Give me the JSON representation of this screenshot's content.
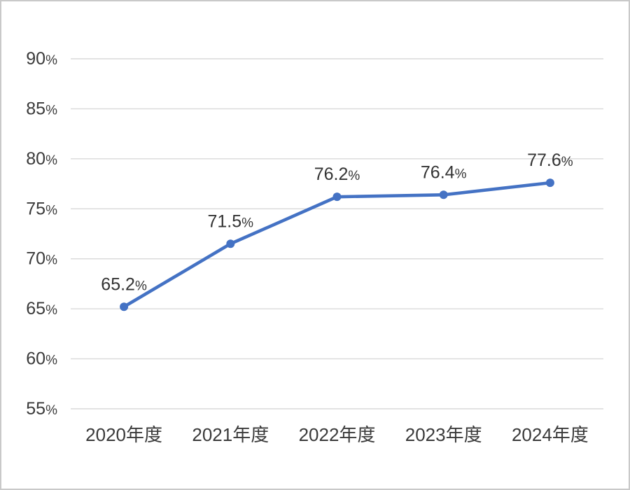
{
  "chart_data": {
    "type": "line",
    "categories": [
      "2020年度",
      "2021年度",
      "2022年度",
      "2023年度",
      "2024年度"
    ],
    "series": [
      {
        "name": "series-1",
        "values": [
          65.2,
          71.5,
          76.2,
          76.4,
          77.6
        ],
        "data_labels": [
          "65.2%",
          "71.5%",
          "76.2%",
          "76.4%",
          "77.6%"
        ]
      }
    ],
    "y_ticks": [
      {
        "value": 90,
        "label": "90%"
      },
      {
        "value": 85,
        "label": "85%"
      },
      {
        "value": 80,
        "label": "80%"
      },
      {
        "value": 75,
        "label": "75%"
      },
      {
        "value": 70,
        "label": "70%"
      },
      {
        "value": 65,
        "label": "65%"
      },
      {
        "value": 60,
        "label": "60%"
      },
      {
        "value": 55,
        "label": "55%"
      }
    ],
    "ylim": [
      55,
      90
    ],
    "xlabel": "",
    "ylabel": "",
    "grid": true,
    "legend_position": "none",
    "colors": {
      "line": "#4472C4",
      "marker": "#4472C4",
      "gridline": "#D9D9D9",
      "axis_text": "#3A3A3A",
      "data_label_text": "#333333",
      "canvas_border": "#C9C9C9",
      "background": "#FFFFFF"
    }
  }
}
